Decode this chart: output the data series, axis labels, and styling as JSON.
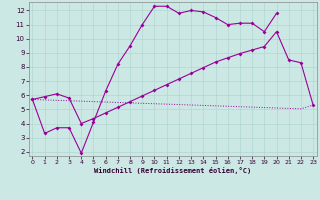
{
  "bg_color": "#cce8e4",
  "grid_color": "#aad4cc",
  "line_color": "#990099",
  "xlim": [
    -0.3,
    23.3
  ],
  "ylim": [
    1.7,
    12.6
  ],
  "xticks": [
    0,
    1,
    2,
    3,
    4,
    5,
    6,
    7,
    8,
    9,
    10,
    11,
    12,
    13,
    14,
    15,
    16,
    17,
    18,
    19,
    20,
    21,
    22,
    23
  ],
  "yticks": [
    2,
    3,
    4,
    5,
    6,
    7,
    8,
    9,
    10,
    11,
    12
  ],
  "xlabel": "Windchill (Refroidissement éolien,°C)",
  "line1_x": [
    0,
    1,
    2,
    3,
    4,
    5,
    6,
    7,
    8,
    9,
    10,
    11,
    12,
    13,
    14,
    15,
    16,
    17,
    18,
    19,
    20
  ],
  "line1_y": [
    5.7,
    3.3,
    3.7,
    3.7,
    1.9,
    4.1,
    6.3,
    8.2,
    9.5,
    11.0,
    12.3,
    12.3,
    11.8,
    12.0,
    11.9,
    11.5,
    11.0,
    11.1,
    11.1,
    10.5,
    11.8
  ],
  "line2_x": [
    0,
    1,
    2,
    3,
    4,
    5,
    6,
    7,
    8,
    9,
    10,
    11,
    12,
    13,
    14,
    15,
    16,
    17,
    18,
    19,
    20,
    21,
    22,
    23
  ],
  "line2_y": [
    5.7,
    5.67,
    5.64,
    5.61,
    5.58,
    5.55,
    5.52,
    5.49,
    5.46,
    5.43,
    5.4,
    5.37,
    5.34,
    5.31,
    5.28,
    5.25,
    5.22,
    5.19,
    5.16,
    5.13,
    5.1,
    5.07,
    5.04,
    5.3
  ],
  "line3_x": [
    0,
    1,
    2,
    3,
    4,
    5,
    6,
    7,
    8,
    9,
    10,
    11,
    12,
    13,
    14,
    15,
    16,
    17,
    18,
    19,
    20,
    21,
    22,
    23
  ],
  "line3_y": [
    5.7,
    5.9,
    6.1,
    5.8,
    4.0,
    4.35,
    4.75,
    5.15,
    5.55,
    5.95,
    6.35,
    6.75,
    7.15,
    7.55,
    7.95,
    8.35,
    8.65,
    8.95,
    9.2,
    9.45,
    10.5,
    8.5,
    8.3,
    5.3
  ]
}
